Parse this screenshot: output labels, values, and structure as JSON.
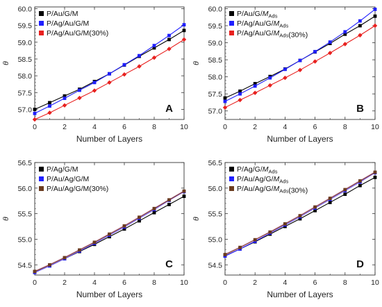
{
  "chart_data": [
    {
      "panel": "A",
      "type": "line",
      "xlabel": "Number of Layers",
      "ylabel": "θ",
      "xlim": [
        0,
        10
      ],
      "ylim": [
        56.7,
        60.05
      ],
      "xticks": [
        "0",
        "2",
        "4",
        "6",
        "8",
        "10"
      ],
      "yticks": [
        "57.0",
        "57.5",
        "58.0",
        "58.5",
        "59.0",
        "59.5",
        "60.0"
      ],
      "ytick_values": [
        57.0,
        57.5,
        58.0,
        58.5,
        59.0,
        59.5,
        60.0
      ],
      "x": [
        0,
        1,
        2,
        3,
        4,
        5,
        6,
        7,
        8,
        9,
        10
      ],
      "legend_position": "top-left",
      "series": [
        {
          "name": "P/Au/G/M",
          "legend_parts": [
            {
              "t": "P/Au/G/M"
            }
          ],
          "color": "#000000",
          "marker": "square",
          "values": [
            57.0,
            57.2,
            57.4,
            57.6,
            57.83,
            58.06,
            58.32,
            58.58,
            58.83,
            59.08,
            59.35
          ]
        },
        {
          "name": "P/Ag/Au/G/M",
          "legend_parts": [
            {
              "t": "P/Ag/Au/G/M"
            }
          ],
          "color": "#1f1fff",
          "marker": "square",
          "values": [
            56.88,
            57.1,
            57.33,
            57.57,
            57.8,
            58.06,
            58.33,
            58.6,
            58.9,
            59.2,
            59.52
          ]
        },
        {
          "name": "P/Ag/Au/G/M(30%)",
          "legend_parts": [
            {
              "t": "P/Ag/Au/G/M(30%)"
            }
          ],
          "color": "#e8201e",
          "marker": "diamond",
          "values": [
            56.7,
            56.9,
            57.12,
            57.34,
            57.56,
            57.8,
            58.04,
            58.28,
            58.54,
            58.8,
            59.08
          ]
        }
      ]
    },
    {
      "panel": "B",
      "type": "line",
      "xlabel": "Number of Layers",
      "ylabel": "θ",
      "xlim": [
        0,
        10
      ],
      "ylim": [
        56.75,
        60.05
      ],
      "xticks": [
        "0",
        "2",
        "4",
        "6",
        "8",
        "10"
      ],
      "yticks": [
        "57.0",
        "57.5",
        "58.0",
        "58.5",
        "59.0",
        "59.5",
        "60.0"
      ],
      "ytick_values": [
        57.0,
        57.5,
        58.0,
        58.5,
        59.0,
        59.5,
        60.0
      ],
      "x": [
        0,
        1,
        2,
        3,
        4,
        5,
        6,
        7,
        8,
        9,
        10
      ],
      "legend_position": "top-left",
      "series": [
        {
          "name": "P/Au/G/MAds",
          "legend_parts": [
            {
              "t": "P/Au/G/"
            },
            {
              "t": "M",
              "i": true
            },
            {
              "t": "Ads",
              "sub": true
            }
          ],
          "color": "#000000",
          "marker": "square",
          "values": [
            57.38,
            57.58,
            57.8,
            58.01,
            58.23,
            58.48,
            58.73,
            58.98,
            59.25,
            59.5,
            59.78
          ]
        },
        {
          "name": "P/Ag/Au/G/MAds",
          "legend_parts": [
            {
              "t": "P/Ag/Au/G/"
            },
            {
              "t": "M",
              "i": true
            },
            {
              "t": "Ads",
              "sub": true
            }
          ],
          "color": "#1f1fff",
          "marker": "square",
          "values": [
            57.28,
            57.5,
            57.73,
            57.97,
            58.22,
            58.48,
            58.74,
            59.02,
            59.32,
            59.64,
            59.98
          ]
        },
        {
          "name": "P/Ag/Au/G/MAds(30%)",
          "legend_parts": [
            {
              "t": "P/Ag/Au/G/"
            },
            {
              "t": "M",
              "i": true
            },
            {
              "t": "Ads",
              "sub": true
            },
            {
              "t": "(30%)"
            }
          ],
          "color": "#e8201e",
          "marker": "diamond",
          "values": [
            57.1,
            57.32,
            57.53,
            57.75,
            57.97,
            58.2,
            58.45,
            58.7,
            58.96,
            59.22,
            59.5
          ]
        }
      ]
    },
    {
      "panel": "C",
      "type": "line",
      "xlabel": "Number of Layers",
      "ylabel": "θ",
      "xlim": [
        0,
        10
      ],
      "ylim": [
        54.3,
        56.5
      ],
      "xticks": [
        "0",
        "2",
        "4",
        "6",
        "8",
        "10"
      ],
      "yticks": [
        "54.5",
        "55.0",
        "55.5",
        "56.0",
        "56.5"
      ],
      "ytick_values": [
        54.5,
        55.0,
        55.5,
        56.0,
        56.5
      ],
      "x": [
        0,
        1,
        2,
        3,
        4,
        5,
        6,
        7,
        8,
        9,
        10
      ],
      "legend_position": "top-left",
      "series": [
        {
          "name": "P/Ag/G/M",
          "legend_parts": [
            {
              "t": "P/Ag/G/M"
            }
          ],
          "color": "#000000",
          "marker": "square",
          "values": [
            54.36,
            54.48,
            54.62,
            54.76,
            54.9,
            55.05,
            55.2,
            55.36,
            55.52,
            55.68,
            55.84
          ]
        },
        {
          "name": "P/Au/Ag/G/M",
          "legend_parts": [
            {
              "t": "P/Au/Ag/G/M"
            }
          ],
          "color": "#1f1fff",
          "marker": "square",
          "values": [
            54.35,
            54.48,
            54.62,
            54.77,
            54.92,
            55.08,
            55.24,
            55.41,
            55.58,
            55.76,
            55.93
          ]
        },
        {
          "name": "P/Au/Ag/G/M(30%)",
          "legend_parts": [
            {
              "t": "P/Au/Ag/G/M(30%)"
            }
          ],
          "color": "#6b3b1e",
          "marker": "square",
          "values": [
            54.37,
            54.5,
            54.64,
            54.79,
            54.94,
            55.1,
            55.26,
            55.43,
            55.6,
            55.77,
            55.94
          ]
        }
      ]
    },
    {
      "panel": "D",
      "type": "line",
      "xlabel": "Number of Layers",
      "ylabel": "θ",
      "xlim": [
        0,
        10
      ],
      "ylim": [
        54.3,
        56.5
      ],
      "xticks": [
        "0",
        "2",
        "4",
        "6",
        "8",
        "10"
      ],
      "yticks": [
        "54.5",
        "55.0",
        "55.5",
        "56.0",
        "56.5"
      ],
      "ytick_values": [
        54.5,
        55.0,
        55.5,
        56.0,
        56.5
      ],
      "x": [
        0,
        1,
        2,
        3,
        4,
        5,
        6,
        7,
        8,
        9,
        10
      ],
      "legend_position": "top-left",
      "series": [
        {
          "name": "P/Ag/G/MAds",
          "legend_parts": [
            {
              "t": "P/Ag/G/"
            },
            {
              "t": "M",
              "i": true
            },
            {
              "t": "Ads",
              "sub": true
            }
          ],
          "color": "#000000",
          "marker": "square",
          "values": [
            54.68,
            54.81,
            54.95,
            55.1,
            55.25,
            55.4,
            55.56,
            55.72,
            55.88,
            56.05,
            56.21
          ]
        },
        {
          "name": "P/Au/Ag/G/MAds",
          "legend_parts": [
            {
              "t": "P/Au/Ag/G/"
            },
            {
              "t": "M",
              "i": true
            },
            {
              "t": "Ads",
              "sub": true
            }
          ],
          "color": "#1f1fff",
          "marker": "square",
          "values": [
            54.67,
            54.81,
            54.96,
            55.12,
            55.28,
            55.44,
            55.61,
            55.78,
            55.95,
            56.12,
            56.3
          ]
        },
        {
          "name": "P/Au/Ag/G/MAds(30%)",
          "legend_parts": [
            {
              "t": "P/Au/Ag/G/"
            },
            {
              "t": "M",
              "i": true
            },
            {
              "t": "Ads",
              "sub": true
            },
            {
              "t": "(30%)"
            }
          ],
          "color": "#6b3b1e",
          "marker": "square",
          "values": [
            54.7,
            54.84,
            54.99,
            55.14,
            55.3,
            55.46,
            55.63,
            55.8,
            55.97,
            56.14,
            56.31
          ]
        }
      ]
    }
  ]
}
